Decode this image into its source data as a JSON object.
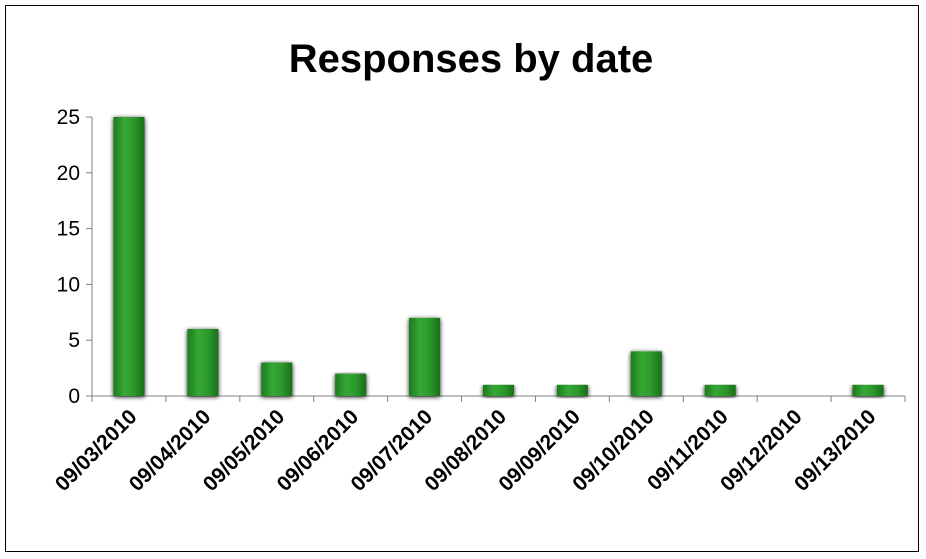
{
  "chart_data": {
    "type": "bar",
    "title": "Responses by date",
    "xlabel": "",
    "ylabel": "",
    "categories": [
      "09/03/2010",
      "09/04/2010",
      "09/05/2010",
      "09/06/2010",
      "09/07/2010",
      "09/08/2010",
      "09/09/2010",
      "09/10/2010",
      "09/11/2010",
      "09/12/2010",
      "09/13/2010"
    ],
    "values": [
      25,
      6,
      3,
      2,
      7,
      1,
      1,
      4,
      1,
      0,
      1
    ],
    "ylim": [
      0,
      25
    ],
    "yticks": [
      0,
      5,
      10,
      15,
      20,
      25
    ],
    "grid": false,
    "legend": "none",
    "bar_color": "#2ea12e",
    "bar_color_dark": "#1e7a1e",
    "bar_shadow_color": "#000000"
  }
}
